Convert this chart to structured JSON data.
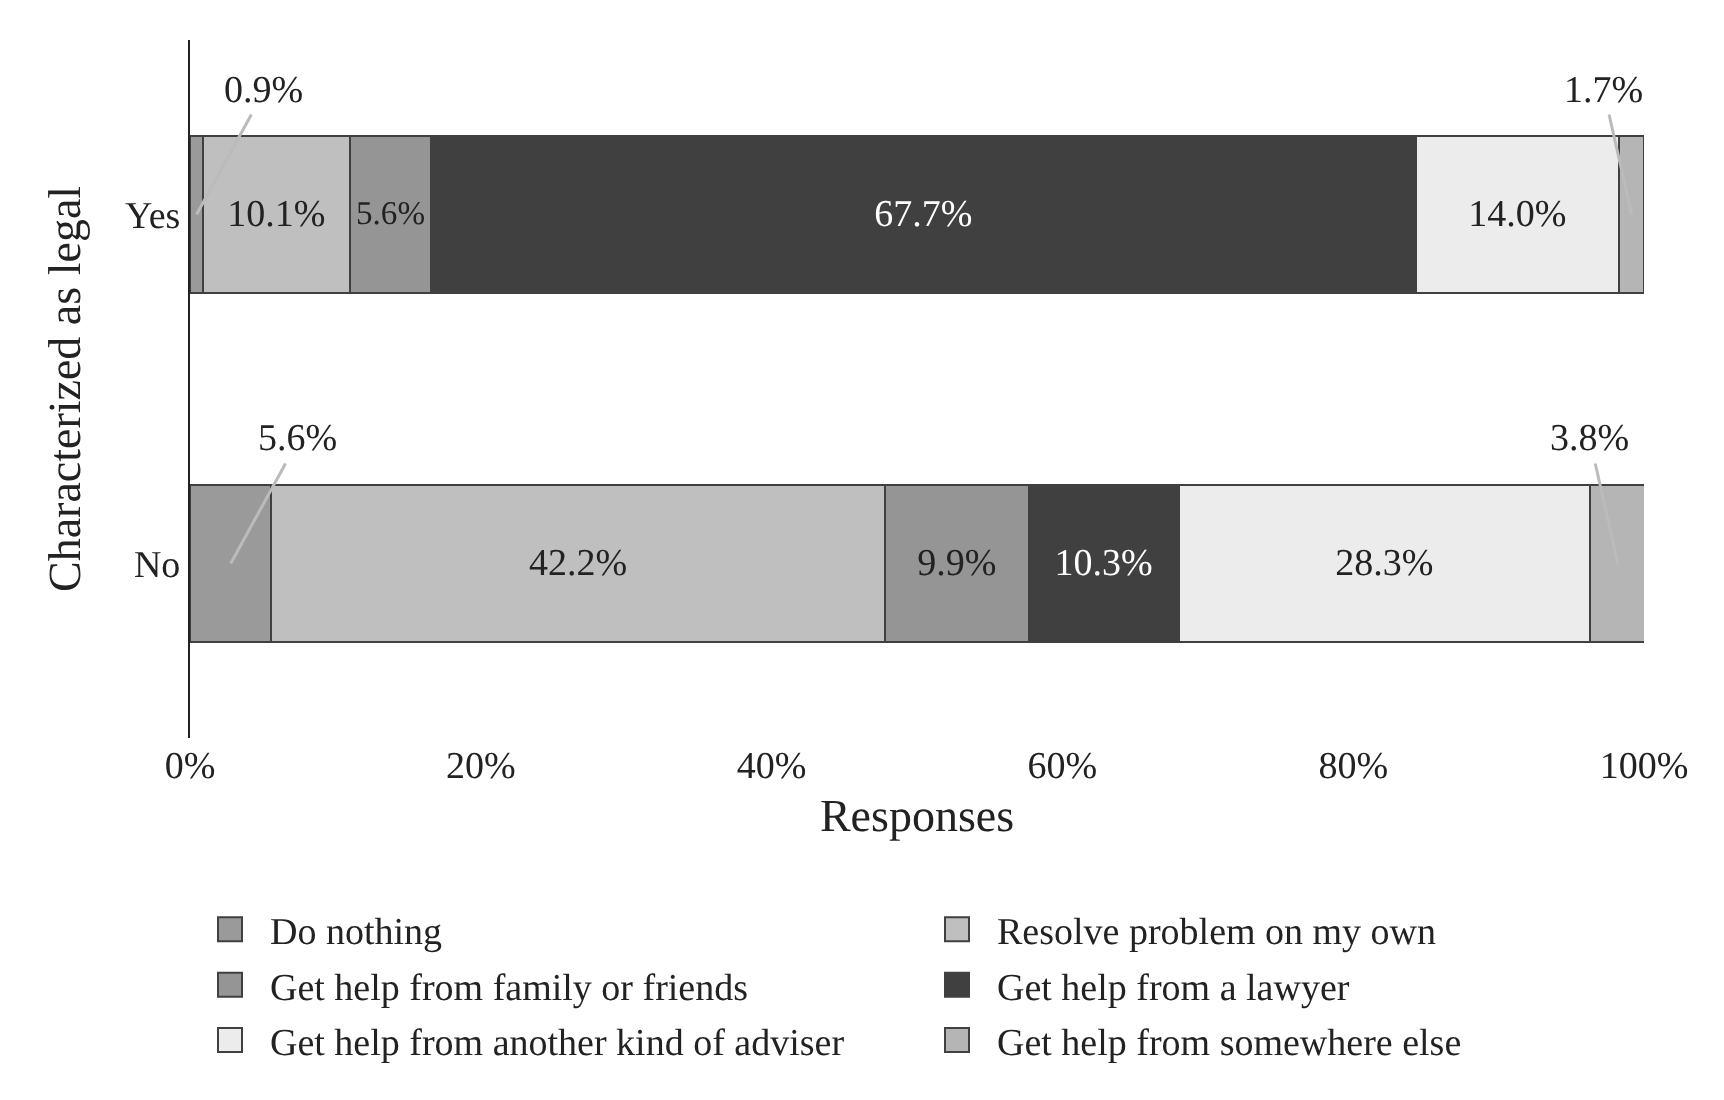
{
  "chart_data": {
    "type": "bar",
    "orientation": "horizontal",
    "stacked": true,
    "xlabel": "Responses",
    "ylabel": "Characterized as legal",
    "categories": [
      "Yes",
      "No"
    ],
    "series": [
      {
        "name": "Do nothing",
        "color": "#9a9a9a",
        "values": [
          0.9,
          5.6
        ],
        "value_labels": [
          "0.9%",
          "5.6%"
        ]
      },
      {
        "name": "Resolve problem on my own",
        "color": "#bfbfbf",
        "values": [
          10.1,
          42.2
        ],
        "value_labels": [
          "10.1%",
          "42.2%"
        ]
      },
      {
        "name": "Get help from family or friends",
        "color": "#959595",
        "values": [
          5.6,
          9.9
        ],
        "value_labels": [
          "5.6%",
          "9.9%"
        ]
      },
      {
        "name": "Get help from a lawyer",
        "color": "#404040",
        "values": [
          67.7,
          10.3
        ],
        "value_labels": [
          "67.7%",
          "10.3%"
        ]
      },
      {
        "name": "Get help from another kind of adviser",
        "color": "#ececec",
        "values": [
          14.0,
          28.3
        ],
        "value_labels": [
          "14.0%",
          "28.3%"
        ]
      },
      {
        "name": "Get help from somewhere else",
        "color": "#b5b5b5",
        "values": [
          1.7,
          3.8
        ],
        "value_labels": [
          "1.7%",
          "3.8%"
        ]
      }
    ],
    "xlim": [
      0,
      100
    ],
    "xticks": [
      {
        "value": 0,
        "label": "0%"
      },
      {
        "value": 20,
        "label": "20%"
      },
      {
        "value": 40,
        "label": "40%"
      },
      {
        "value": 60,
        "label": "60%"
      },
      {
        "value": 80,
        "label": "80%"
      },
      {
        "value": 100,
        "label": "100%"
      }
    ],
    "legend": "bottom"
  }
}
